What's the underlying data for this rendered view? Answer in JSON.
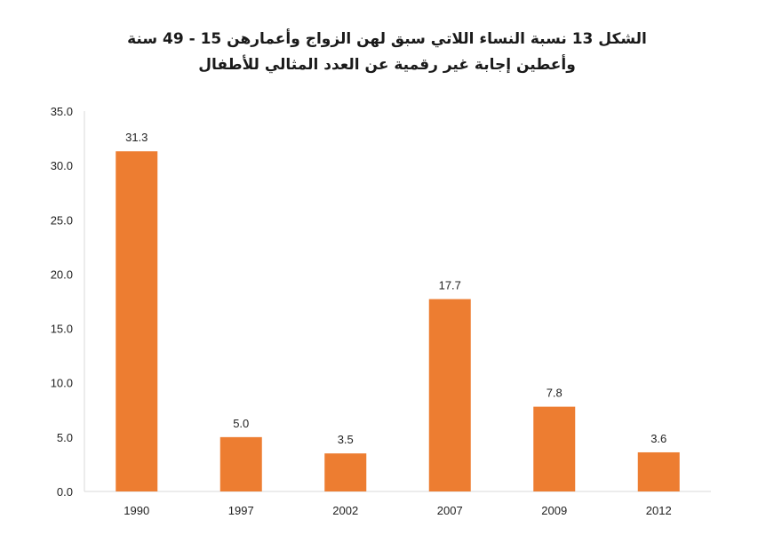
{
  "chart_data": {
    "type": "bar",
    "title_lines": [
      "الشكل 13 نسبة النساء اللاتي سبق لهن الزواج وأعمارهن 15 - 49 سنة",
      "وأعطين إجابة غير رقمية عن العدد المثالي للأطفال"
    ],
    "categories": [
      "1990",
      "1997",
      "2002",
      "2007",
      "2009",
      "2012"
    ],
    "values": [
      31.3,
      5.0,
      3.5,
      17.7,
      7.8,
      3.6
    ],
    "value_labels": [
      "31.3",
      "5.0",
      "3.5",
      "17.7",
      "7.8",
      "3.6"
    ],
    "yticks": [
      "0.0",
      "5.0",
      "10.0",
      "15.0",
      "20.0",
      "25.0",
      "30.0",
      "35.0"
    ],
    "ylim": [
      0,
      35
    ],
    "grid": false,
    "bar_color": "#ED7D31"
  }
}
